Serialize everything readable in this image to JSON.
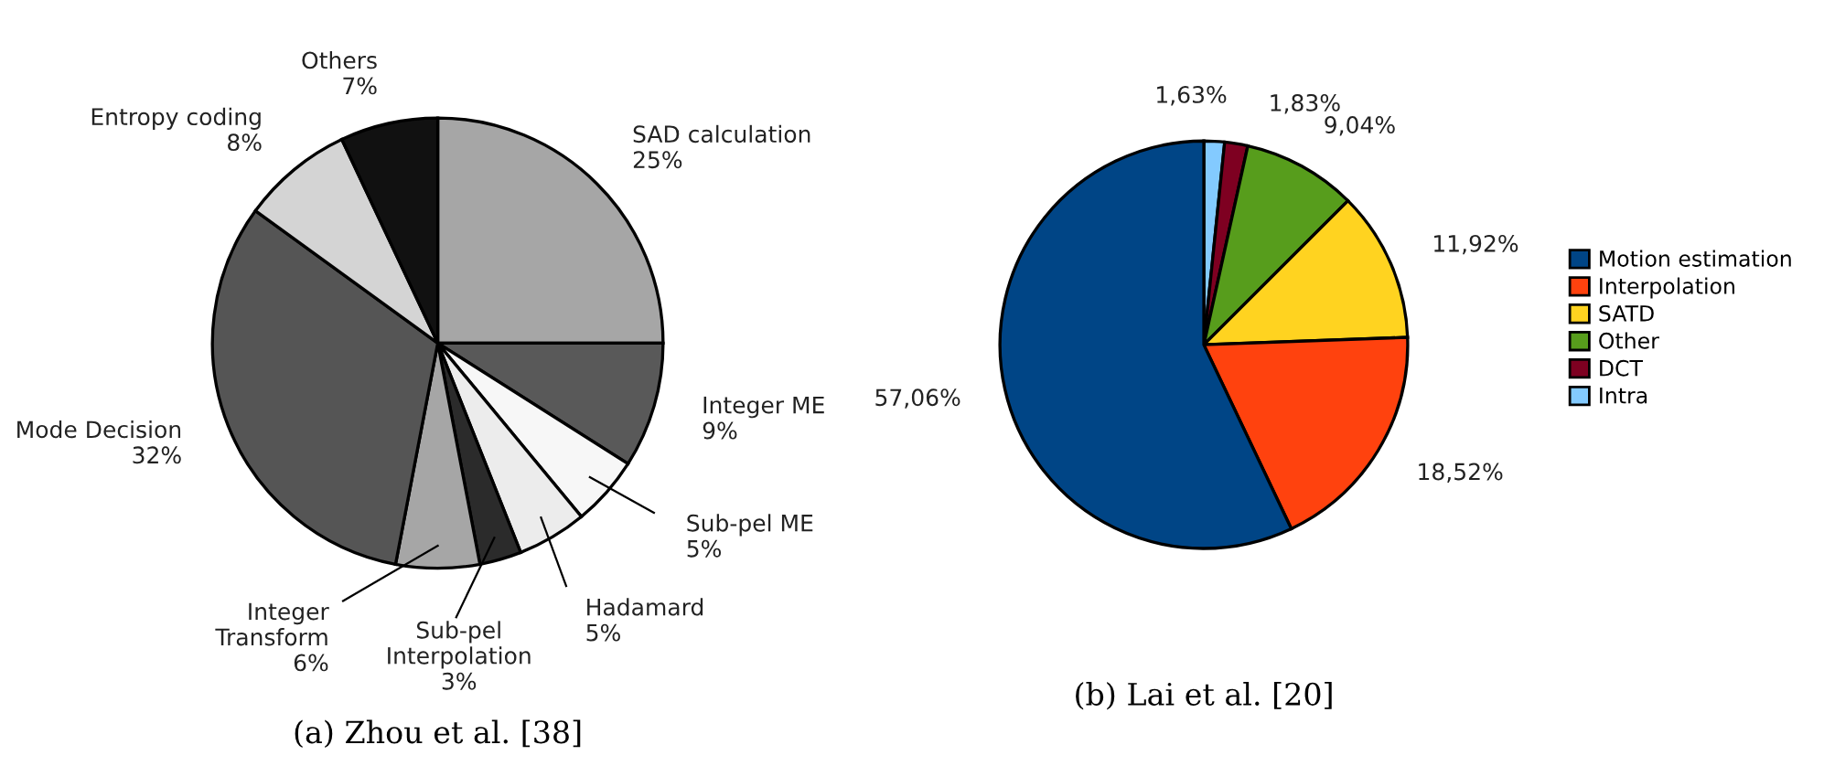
{
  "chart_data": [
    {
      "type": "pie",
      "title": "(a) Zhou et al. [38]",
      "categories": [
        "SAD calculation",
        "Integer ME",
        "Sub-pel ME",
        "Hadamard",
        "Sub-pel\nInterpolation",
        "Integer\nTransform",
        "Mode Decision",
        "Entropy coding",
        "Others"
      ],
      "values": [
        25,
        9,
        5,
        5,
        3,
        6,
        32,
        8,
        7
      ],
      "value_labels": [
        "25%",
        "9%",
        "5%",
        "5%",
        "3%",
        "6%",
        "32%",
        "8%",
        "7%"
      ],
      "colors": [
        "#a6a6a6",
        "#595959",
        "#f7f7f7",
        "#ececec",
        "#2b2b2b",
        "#a6a6a6",
        "#555555",
        "#d4d4d4",
        "#111111"
      ],
      "legend": false
    },
    {
      "type": "pie",
      "title": "(b) Lai et al. [20]",
      "categories": [
        "Intra",
        "DCT",
        "Other",
        "SATD",
        "Interpolation",
        "Motion estimation"
      ],
      "values": [
        1.63,
        1.83,
        9.04,
        11.92,
        18.52,
        57.06
      ],
      "value_labels": [
        "1,63%",
        "1,83%",
        "9,04%",
        "11,92%",
        "18,52%",
        "57,06%"
      ],
      "colors": [
        "#83caff",
        "#7e0021",
        "#579d1c",
        "#ffd320",
        "#ff420e",
        "#004586"
      ],
      "legend": "right"
    }
  ]
}
